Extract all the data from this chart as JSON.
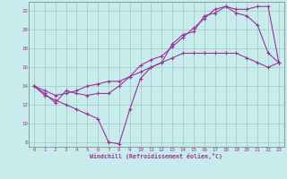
{
  "xlabel": "Windchill (Refroidissement éolien,°C)",
  "background_color": "#c8ecec",
  "grid_color": "#a0c8c8",
  "line_color": "#993399",
  "xlim": [
    -0.5,
    23.5
  ],
  "ylim": [
    7.5,
    23.0
  ],
  "xticks": [
    0,
    1,
    2,
    3,
    4,
    5,
    6,
    7,
    8,
    9,
    10,
    11,
    12,
    13,
    14,
    15,
    16,
    17,
    18,
    19,
    20,
    21,
    22,
    23
  ],
  "yticks": [
    8,
    10,
    12,
    14,
    16,
    18,
    20,
    22
  ],
  "curve1_x": [
    0,
    1,
    2,
    3,
    4,
    5,
    6,
    7,
    8,
    9,
    10,
    11,
    12,
    13,
    14,
    15,
    16,
    17,
    18,
    19,
    20,
    21,
    22,
    23
  ],
  "curve1_y": [
    14,
    13,
    12.5,
    12,
    11.5,
    11,
    10.5,
    8.0,
    7.8,
    11.5,
    14.8,
    16.0,
    16.5,
    18.5,
    19.5,
    19.8,
    21.5,
    21.8,
    22.5,
    21.8,
    21.5,
    20.5,
    17.5,
    16.5
  ],
  "curve2_x": [
    0,
    1,
    2,
    3,
    4,
    5,
    6,
    7,
    8,
    9,
    10,
    11,
    12,
    13,
    14,
    15,
    16,
    17,
    18,
    19,
    20,
    21,
    22,
    23
  ],
  "curve2_y": [
    14,
    13.2,
    12.2,
    13.5,
    13.2,
    13.0,
    13.2,
    13.2,
    14.0,
    15.0,
    16.2,
    16.8,
    17.2,
    18.2,
    19.2,
    20.2,
    21.2,
    22.2,
    22.5,
    22.2,
    22.2,
    22.5,
    22.5,
    16.5
  ],
  "curve3_x": [
    0,
    1,
    2,
    3,
    4,
    5,
    6,
    7,
    8,
    9,
    10,
    11,
    12,
    13,
    14,
    15,
    16,
    17,
    18,
    19,
    20,
    21,
    22,
    23
  ],
  "curve3_y": [
    14,
    13.5,
    13.0,
    13.2,
    13.5,
    14.0,
    14.2,
    14.5,
    14.5,
    15.0,
    15.5,
    16.0,
    16.5,
    17.0,
    17.5,
    17.5,
    17.5,
    17.5,
    17.5,
    17.5,
    17.0,
    16.5,
    16.0,
    16.5
  ]
}
